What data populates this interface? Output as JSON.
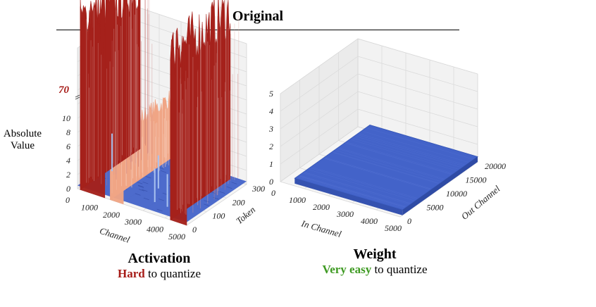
{
  "header": {
    "title": "Original"
  },
  "chart_data": [
    {
      "type": "surface3d",
      "name": "activation",
      "zlabel": "Absolute Value",
      "xlabel": "Channel",
      "ylabel": "Token",
      "x_ticks": [
        "0",
        "1000",
        "2000",
        "3000",
        "4000",
        "5000"
      ],
      "y_ticks": [
        "0",
        "100",
        "200",
        "300"
      ],
      "z_ticks": [
        "0",
        "2",
        "4",
        "6",
        "8",
        "10"
      ],
      "z_max_label": "70",
      "xlim": [
        0,
        5000
      ],
      "ylim": [
        0,
        300
      ],
      "baseline_value": 1.5,
      "outlier_channels": [
        {
          "channel_range": [
            130,
            1250
          ],
          "peak_value": 70,
          "color": "#a5211b"
        },
        {
          "channel_range": [
            1500,
            2100
          ],
          "peak_value": 38,
          "color": "#f0a585"
        },
        {
          "channel_range": [
            4250,
            5000
          ],
          "peak_value": 70,
          "color": "#a5211b"
        }
      ],
      "caption": {
        "title": "Activation",
        "emph": "Hard",
        "rest": " to quantize"
      }
    },
    {
      "type": "surface3d",
      "name": "weight",
      "xlabel": "In Channel",
      "ylabel": "Out Channel",
      "x_ticks": [
        "0",
        "1000",
        "2000",
        "3000",
        "4000",
        "5000"
      ],
      "y_ticks": [
        "0",
        "5000",
        "10000",
        "15000",
        "20000"
      ],
      "z_ticks": [
        "0",
        "1",
        "2",
        "3",
        "4",
        "5"
      ],
      "xlim": [
        0,
        5000
      ],
      "ylim": [
        0,
        20000
      ],
      "zlim": [
        0,
        5
      ],
      "surface_value": 0.3,
      "caption": {
        "title": "Weight",
        "emph": "Very easy",
        "rest": " to quantize"
      }
    }
  ],
  "colors": {
    "low": "#4363c9",
    "high": "#a5211b",
    "mid": "#f0a585"
  }
}
